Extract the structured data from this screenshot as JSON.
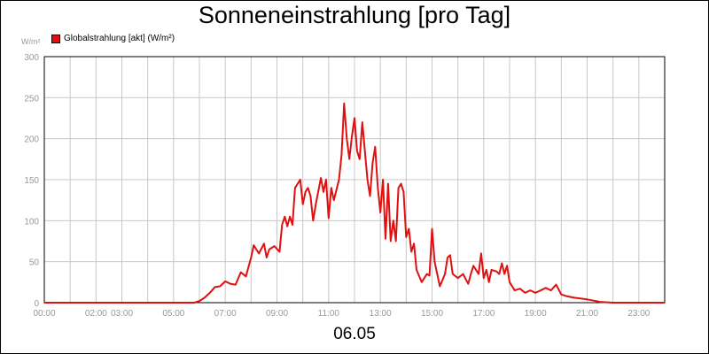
{
  "chart_data": {
    "type": "line",
    "title": "Sonneneinstrahlung [pro Tag]",
    "date_label": "06.05",
    "y_unit": "W/m²",
    "ylim": [
      0,
      300
    ],
    "y_ticks": [
      0,
      50,
      100,
      150,
      200,
      250,
      300
    ],
    "xlim_hours": [
      0,
      24
    ],
    "x_tick_labels": [
      {
        "h": 0,
        "label": "00:00"
      },
      {
        "h": 2,
        "label": "02:00"
      },
      {
        "h": 3,
        "label": "03:00"
      },
      {
        "h": 5,
        "label": "05:00"
      },
      {
        "h": 7,
        "label": "07:00"
      },
      {
        "h": 9,
        "label": "09:00"
      },
      {
        "h": 11,
        "label": "11:00"
      },
      {
        "h": 13,
        "label": "13:00"
      },
      {
        "h": 15,
        "label": "15:00"
      },
      {
        "h": 17,
        "label": "17:00"
      },
      {
        "h": 19,
        "label": "19:00"
      },
      {
        "h": 21,
        "label": "21:00"
      },
      {
        "h": 23,
        "label": "23:00"
      }
    ],
    "grid": true,
    "legend_position": "top-left",
    "series": [
      {
        "name": "Globalstrahlung [akt] (W/m²)",
        "color": "#e01010",
        "points": [
          [
            0,
            0
          ],
          [
            5.8,
            0
          ],
          [
            6.0,
            2
          ],
          [
            6.2,
            6
          ],
          [
            6.4,
            12
          ],
          [
            6.6,
            19
          ],
          [
            6.8,
            20
          ],
          [
            7.0,
            26
          ],
          [
            7.2,
            23
          ],
          [
            7.4,
            22
          ],
          [
            7.6,
            37
          ],
          [
            7.8,
            32
          ],
          [
            8.0,
            55
          ],
          [
            8.1,
            70
          ],
          [
            8.3,
            60
          ],
          [
            8.5,
            72
          ],
          [
            8.6,
            55
          ],
          [
            8.7,
            65
          ],
          [
            8.9,
            69
          ],
          [
            9.1,
            62
          ],
          [
            9.2,
            95
          ],
          [
            9.3,
            105
          ],
          [
            9.4,
            93
          ],
          [
            9.5,
            105
          ],
          [
            9.6,
            95
          ],
          [
            9.7,
            140
          ],
          [
            9.9,
            150
          ],
          [
            10.0,
            120
          ],
          [
            10.1,
            135
          ],
          [
            10.2,
            140
          ],
          [
            10.3,
            130
          ],
          [
            10.4,
            100
          ],
          [
            10.5,
            120
          ],
          [
            10.7,
            152
          ],
          [
            10.8,
            135
          ],
          [
            10.9,
            150
          ],
          [
            11.0,
            103
          ],
          [
            11.1,
            140
          ],
          [
            11.2,
            125
          ],
          [
            11.4,
            150
          ],
          [
            11.5,
            180
          ],
          [
            11.6,
            243
          ],
          [
            11.7,
            200
          ],
          [
            11.8,
            175
          ],
          [
            11.9,
            203
          ],
          [
            12.0,
            225
          ],
          [
            12.1,
            185
          ],
          [
            12.2,
            175
          ],
          [
            12.3,
            220
          ],
          [
            12.4,
            185
          ],
          [
            12.5,
            150
          ],
          [
            12.6,
            130
          ],
          [
            12.7,
            170
          ],
          [
            12.8,
            190
          ],
          [
            12.9,
            140
          ],
          [
            13.0,
            110
          ],
          [
            13.1,
            150
          ],
          [
            13.2,
            78
          ],
          [
            13.3,
            145
          ],
          [
            13.4,
            75
          ],
          [
            13.5,
            100
          ],
          [
            13.6,
            75
          ],
          [
            13.7,
            140
          ],
          [
            13.8,
            145
          ],
          [
            13.9,
            135
          ],
          [
            14.0,
            80
          ],
          [
            14.1,
            90
          ],
          [
            14.2,
            62
          ],
          [
            14.3,
            72
          ],
          [
            14.4,
            40
          ],
          [
            14.6,
            25
          ],
          [
            14.8,
            35
          ],
          [
            14.9,
            33
          ],
          [
            15.0,
            90
          ],
          [
            15.1,
            50
          ],
          [
            15.3,
            20
          ],
          [
            15.5,
            35
          ],
          [
            15.6,
            55
          ],
          [
            15.7,
            58
          ],
          [
            15.8,
            35
          ],
          [
            16.0,
            30
          ],
          [
            16.2,
            35
          ],
          [
            16.4,
            23
          ],
          [
            16.5,
            35
          ],
          [
            16.6,
            45
          ],
          [
            16.8,
            35
          ],
          [
            16.9,
            60
          ],
          [
            17.0,
            30
          ],
          [
            17.1,
            40
          ],
          [
            17.2,
            25
          ],
          [
            17.3,
            40
          ],
          [
            17.5,
            38
          ],
          [
            17.6,
            35
          ],
          [
            17.7,
            48
          ],
          [
            17.8,
            35
          ],
          [
            17.9,
            45
          ],
          [
            18.0,
            25
          ],
          [
            18.2,
            15
          ],
          [
            18.4,
            17
          ],
          [
            18.6,
            12
          ],
          [
            18.8,
            15
          ],
          [
            19.0,
            12
          ],
          [
            19.2,
            15
          ],
          [
            19.4,
            18
          ],
          [
            19.6,
            15
          ],
          [
            19.8,
            22
          ],
          [
            20.0,
            10
          ],
          [
            20.2,
            8
          ],
          [
            20.5,
            6
          ],
          [
            21.0,
            4
          ],
          [
            21.5,
            1
          ],
          [
            22.0,
            0
          ],
          [
            24.0,
            0
          ]
        ]
      }
    ]
  }
}
